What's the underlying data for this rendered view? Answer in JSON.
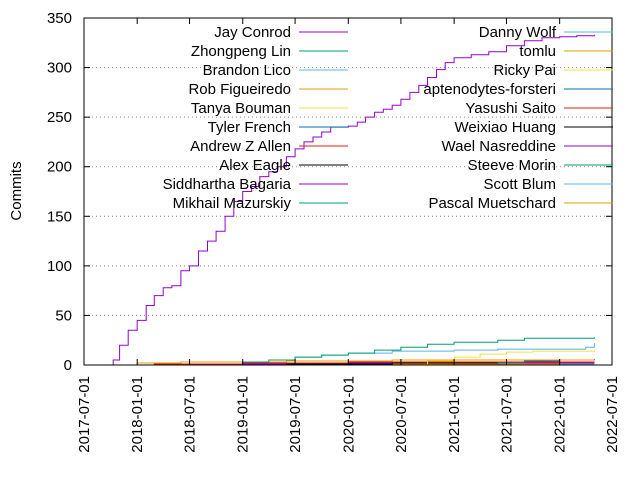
{
  "chart_data": {
    "type": "line",
    "title": "",
    "xlabel": "",
    "ylabel": "Commits",
    "ylim": [
      0,
      350
    ],
    "xlim": [
      "2017-07-01",
      "2022-07-01"
    ],
    "yticks": [
      0,
      50,
      100,
      150,
      200,
      250,
      300,
      350
    ],
    "xticks": [
      "2017-07-01",
      "2018-01-01",
      "2018-07-01",
      "2019-01-01",
      "2019-07-01",
      "2020-01-01",
      "2020-07-01",
      "2021-01-01",
      "2021-07-01",
      "2022-01-01",
      "2022-07-01"
    ],
    "grid": "horizontal dotted at y ticks",
    "legend_placement": "top, two columns",
    "series": [
      {
        "name": "Jay Conrod",
        "color": "#9400d3",
        "points": [
          [
            "2017-09-20",
            0
          ],
          [
            "2017-10-10",
            5
          ],
          [
            "2017-11-01",
            20
          ],
          [
            "2017-12-01",
            35
          ],
          [
            "2018-01-01",
            45
          ],
          [
            "2018-02-01",
            60
          ],
          [
            "2018-03-01",
            70
          ],
          [
            "2018-04-01",
            78
          ],
          [
            "2018-05-01",
            80
          ],
          [
            "2018-06-01",
            95
          ],
          [
            "2018-07-01",
            100
          ],
          [
            "2018-08-01",
            115
          ],
          [
            "2018-09-01",
            125
          ],
          [
            "2018-10-01",
            135
          ],
          [
            "2018-11-01",
            150
          ],
          [
            "2018-12-01",
            165
          ],
          [
            "2019-01-01",
            175
          ],
          [
            "2019-02-01",
            180
          ],
          [
            "2019-03-01",
            190
          ],
          [
            "2019-04-01",
            195
          ],
          [
            "2019-05-01",
            200
          ],
          [
            "2019-06-01",
            210
          ],
          [
            "2019-07-01",
            218
          ],
          [
            "2019-08-01",
            225
          ],
          [
            "2019-09-01",
            230
          ],
          [
            "2019-10-01",
            235
          ],
          [
            "2019-11-01",
            240
          ],
          [
            "2020-01-01",
            241
          ],
          [
            "2020-02-01",
            245
          ],
          [
            "2020-03-01",
            250
          ],
          [
            "2020-04-01",
            255
          ],
          [
            "2020-05-01",
            258
          ],
          [
            "2020-06-01",
            262
          ],
          [
            "2020-07-01",
            268
          ],
          [
            "2020-08-01",
            275
          ],
          [
            "2020-09-01",
            282
          ],
          [
            "2020-10-01",
            290
          ],
          [
            "2020-11-01",
            298
          ],
          [
            "2020-12-01",
            305
          ],
          [
            "2021-01-01",
            310
          ],
          [
            "2021-03-01",
            313
          ],
          [
            "2021-05-01",
            316
          ],
          [
            "2021-07-01",
            322
          ],
          [
            "2021-09-01",
            327
          ],
          [
            "2021-11-01",
            330
          ],
          [
            "2022-01-01",
            331
          ],
          [
            "2022-03-01",
            332
          ],
          [
            "2022-05-01",
            333
          ]
        ]
      },
      {
        "name": "Zhongpeng Lin",
        "color": "#009e73",
        "points": [
          [
            "2018-10-01",
            0
          ],
          [
            "2019-01-01",
            3
          ],
          [
            "2019-04-01",
            5
          ],
          [
            "2019-07-01",
            8
          ],
          [
            "2019-10-01",
            10
          ],
          [
            "2020-01-01",
            12
          ],
          [
            "2020-04-01",
            15
          ],
          [
            "2020-07-01",
            18
          ],
          [
            "2020-10-01",
            21
          ],
          [
            "2021-01-01",
            23
          ],
          [
            "2021-06-01",
            25
          ],
          [
            "2021-09-01",
            27
          ],
          [
            "2022-05-01",
            28
          ]
        ]
      },
      {
        "name": "Brandon Lico",
        "color": "#56b4e9",
        "points": [
          [
            "2019-06-01",
            0
          ],
          [
            "2019-07-01",
            8
          ],
          [
            "2019-10-01",
            10
          ],
          [
            "2020-01-01",
            12
          ],
          [
            "2020-06-01",
            14
          ],
          [
            "2021-01-01",
            15
          ],
          [
            "2021-06-01",
            16
          ],
          [
            "2022-04-01",
            18
          ],
          [
            "2022-05-01",
            22
          ]
        ]
      },
      {
        "name": "Rob Figueiredo",
        "color": "#e69f00",
        "points": [
          [
            "2017-11-01",
            0
          ],
          [
            "2018-01-01",
            2
          ],
          [
            "2018-06-01",
            3
          ],
          [
            "2019-06-01",
            4
          ],
          [
            "2020-06-01",
            5
          ],
          [
            "2022-05-01",
            5
          ]
        ]
      },
      {
        "name": "Tanya Bouman",
        "color": "#f0e442",
        "points": [
          [
            "2020-07-01",
            0
          ],
          [
            "2020-10-01",
            4
          ],
          [
            "2021-01-01",
            8
          ],
          [
            "2021-04-01",
            11
          ],
          [
            "2021-07-01",
            13
          ],
          [
            "2021-10-01",
            14
          ],
          [
            "2022-05-01",
            15
          ]
        ]
      },
      {
        "name": "Tyler French",
        "color": "#0072b2",
        "points": [
          [
            "2021-03-01",
            0
          ],
          [
            "2021-06-01",
            2
          ],
          [
            "2021-09-01",
            4
          ],
          [
            "2022-01-01",
            5
          ],
          [
            "2022-05-01",
            6
          ]
        ]
      },
      {
        "name": "Andrew Z Allen",
        "color": "#e51e10",
        "points": [
          [
            "2018-01-01",
            0
          ],
          [
            "2018-03-01",
            1
          ],
          [
            "2019-01-01",
            2
          ],
          [
            "2020-01-01",
            3
          ],
          [
            "2022-05-01",
            3
          ]
        ]
      },
      {
        "name": "Alex Eagle",
        "color": "#000000",
        "points": [
          [
            "2019-02-01",
            0
          ],
          [
            "2019-06-01",
            1
          ],
          [
            "2020-06-01",
            2
          ],
          [
            "2021-06-01",
            3
          ],
          [
            "2022-05-01",
            3
          ]
        ]
      },
      {
        "name": "Siddhartha Bagaria",
        "color": "#9400d3",
        "points": [
          [
            "2018-06-01",
            0
          ],
          [
            "2019-01-01",
            1
          ],
          [
            "2019-08-01",
            2
          ],
          [
            "2022-05-01",
            2
          ]
        ]
      },
      {
        "name": "Mikhail Mazurskiy",
        "color": "#009e73",
        "points": [
          [
            "2018-07-01",
            0
          ],
          [
            "2018-09-01",
            1
          ],
          [
            "2019-03-01",
            2
          ],
          [
            "2022-05-01",
            2
          ]
        ]
      },
      {
        "name": "Danny Wolf",
        "color": "#56b4e9",
        "points": [
          [
            "2021-10-01",
            0
          ],
          [
            "2022-01-01",
            1
          ],
          [
            "2022-05-01",
            1
          ]
        ]
      },
      {
        "name": "tomlu",
        "color": "#e69f00",
        "points": [
          [
            "2019-01-01",
            0
          ],
          [
            "2019-03-01",
            1
          ],
          [
            "2022-05-01",
            1
          ]
        ]
      },
      {
        "name": "Ricky Pai",
        "color": "#f0e442",
        "points": [
          [
            "2020-03-01",
            0
          ],
          [
            "2020-05-01",
            1
          ],
          [
            "2022-05-01",
            1
          ]
        ]
      },
      {
        "name": "aptenodytes-forsteri",
        "color": "#0072b2",
        "points": [
          [
            "2021-05-01",
            0
          ],
          [
            "2021-07-01",
            1
          ],
          [
            "2022-05-01",
            1
          ]
        ]
      },
      {
        "name": "Yasushi Saito",
        "color": "#e51e10",
        "points": [
          [
            "2018-02-01",
            0
          ],
          [
            "2018-04-01",
            1
          ],
          [
            "2022-05-01",
            1
          ]
        ]
      },
      {
        "name": "Weixiao Huang",
        "color": "#000000",
        "points": [
          [
            "2020-09-01",
            0
          ],
          [
            "2020-11-01",
            1
          ],
          [
            "2022-05-01",
            1
          ]
        ]
      },
      {
        "name": "Wael Nasreddine",
        "color": "#9400d3",
        "points": [
          [
            "2019-11-01",
            0
          ],
          [
            "2020-01-01",
            1
          ],
          [
            "2022-05-01",
            1
          ]
        ]
      },
      {
        "name": "Steeve Morin",
        "color": "#009e73",
        "points": [
          [
            "2018-12-01",
            0
          ],
          [
            "2019-02-01",
            1
          ],
          [
            "2022-05-01",
            1
          ]
        ]
      },
      {
        "name": "Scott Blum",
        "color": "#56b4e9",
        "points": [
          [
            "2021-02-01",
            0
          ],
          [
            "2021-04-01",
            1
          ],
          [
            "2022-05-01",
            1
          ]
        ]
      },
      {
        "name": "Pascal Muetschard",
        "color": "#e69f00",
        "points": [
          [
            "2020-05-01",
            0
          ],
          [
            "2020-07-01",
            1
          ],
          [
            "2022-05-01",
            1
          ]
        ]
      }
    ]
  }
}
